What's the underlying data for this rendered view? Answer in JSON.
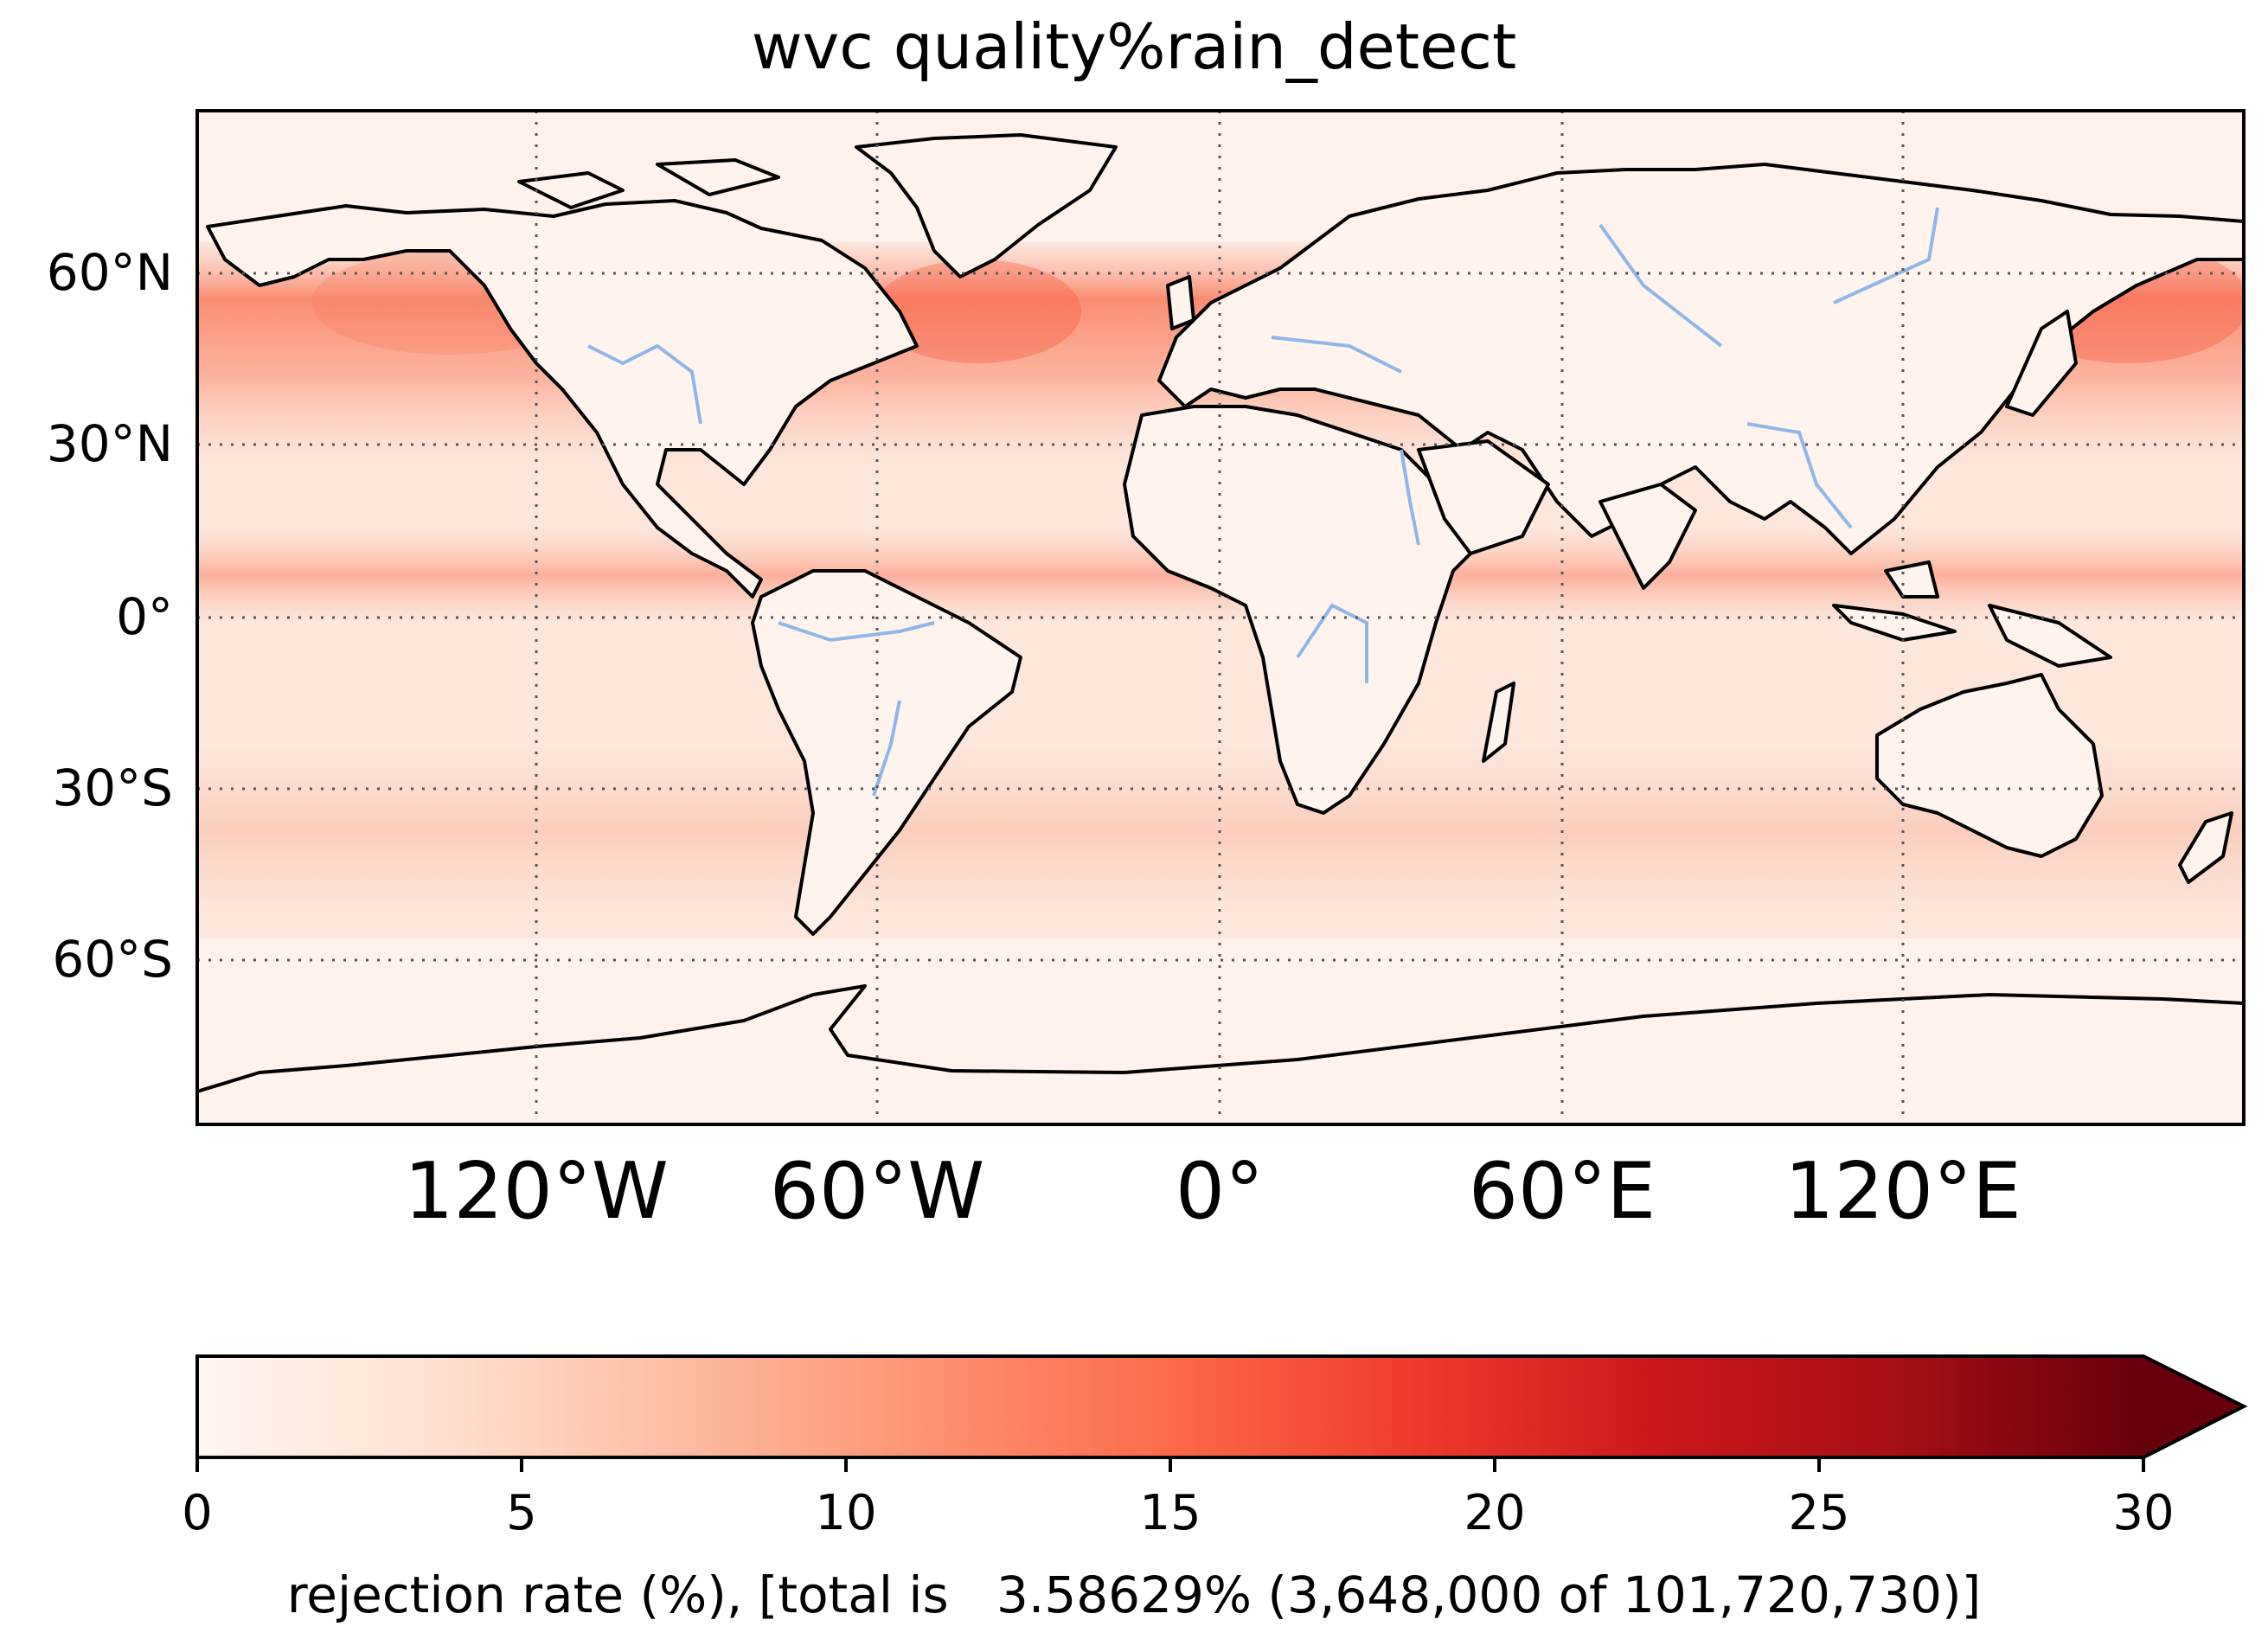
{
  "title": "wvc quality%rain_detect",
  "map": {
    "lat_ticks": [
      "60°N",
      "30°N",
      "0°",
      "30°S",
      "60°S"
    ],
    "lon_ticks": [
      "120°W",
      "60°W",
      "0°",
      "60°E",
      "120°E"
    ],
    "gridlines": "dotted",
    "coastlines": true,
    "rivers": true,
    "colormap": "Reds",
    "colors": {
      "coast": "#000000",
      "river": "#8fb6e8",
      "low": "#fff5f0",
      "high": "#67000d"
    }
  },
  "colorbar": {
    "ticks": [
      "0",
      "5",
      "10",
      "15",
      "20",
      "25",
      "30"
    ],
    "min": 0,
    "max": 30,
    "extend": "max",
    "label": "rejection rate (%), [total is   3.58629% (3,648,000 of 101,720,730)]"
  }
}
